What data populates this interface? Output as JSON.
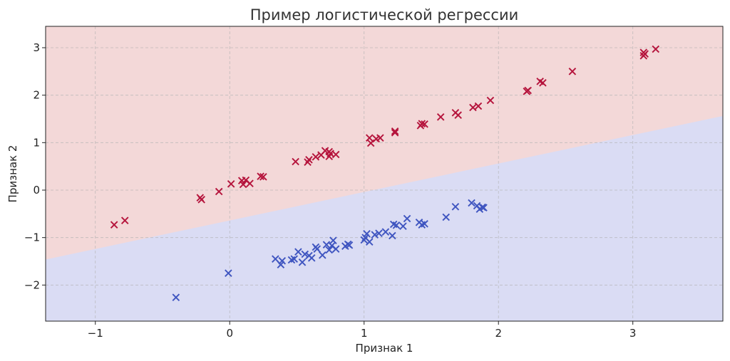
{
  "chart_data": {
    "type": "scatter",
    "title": "Пример логистической регрессии",
    "xlabel": "Признак 1",
    "ylabel": "Признак 2",
    "xlim": [
      -1.37,
      3.67
    ],
    "ylim": [
      -2.76,
      3.45
    ],
    "xticks": [
      -1,
      0,
      1,
      2,
      3
    ],
    "xtick_labels": [
      "−1",
      "0",
      "1",
      "2",
      "3"
    ],
    "yticks": [
      -2,
      -1,
      0,
      1,
      2,
      3
    ],
    "ytick_labels": [
      "−2",
      "−1",
      "0",
      "1",
      "2",
      "3"
    ],
    "grid": true,
    "marker": "x",
    "decision_boundary": {
      "slope": 0.6,
      "intercept": -0.64
    },
    "regions": [
      {
        "class": "upper",
        "color": "#f3d8d8"
      },
      {
        "class": "lower",
        "color": "#dadcf4"
      }
    ],
    "series": [
      {
        "color": "#b5143c",
        "points": [
          [
            -0.86,
            -0.73
          ],
          [
            -0.78,
            -0.64
          ],
          [
            -0.22,
            -0.16
          ],
          [
            -0.21,
            -0.2
          ],
          [
            -0.08,
            -0.03
          ],
          [
            0.01,
            0.13
          ],
          [
            0.09,
            0.2
          ],
          [
            0.1,
            0.12
          ],
          [
            0.12,
            0.21
          ],
          [
            0.15,
            0.14
          ],
          [
            0.23,
            0.29
          ],
          [
            0.25,
            0.28
          ],
          [
            0.49,
            0.6
          ],
          [
            0.58,
            0.59
          ],
          [
            0.59,
            0.64
          ],
          [
            0.64,
            0.7
          ],
          [
            0.68,
            0.74
          ],
          [
            0.71,
            0.83
          ],
          [
            0.74,
            0.81
          ],
          [
            0.74,
            0.71
          ],
          [
            0.75,
            0.77
          ],
          [
            0.79,
            0.75
          ],
          [
            1.04,
            1.1
          ],
          [
            1.05,
            0.99
          ],
          [
            1.09,
            1.08
          ],
          [
            1.12,
            1.1
          ],
          [
            1.23,
            1.21
          ],
          [
            1.23,
            1.24
          ],
          [
            1.42,
            1.36
          ],
          [
            1.43,
            1.4
          ],
          [
            1.45,
            1.39
          ],
          [
            1.57,
            1.54
          ],
          [
            1.68,
            1.63
          ],
          [
            1.7,
            1.58
          ],
          [
            1.81,
            1.74
          ],
          [
            1.85,
            1.77
          ],
          [
            1.94,
            1.89
          ],
          [
            2.21,
            2.08
          ],
          [
            2.22,
            2.1
          ],
          [
            2.31,
            2.29
          ],
          [
            2.33,
            2.26
          ],
          [
            2.55,
            2.5
          ],
          [
            3.08,
            2.83
          ],
          [
            3.08,
            2.9
          ],
          [
            3.09,
            2.87
          ],
          [
            3.17,
            2.97
          ]
        ]
      },
      {
        "color": "#3f55c0",
        "points": [
          [
            -0.4,
            -2.26
          ],
          [
            -0.01,
            -1.75
          ],
          [
            0.34,
            -1.45
          ],
          [
            0.38,
            -1.57
          ],
          [
            0.39,
            -1.49
          ],
          [
            0.46,
            -1.47
          ],
          [
            0.48,
            -1.45
          ],
          [
            0.51,
            -1.3
          ],
          [
            0.54,
            -1.52
          ],
          [
            0.56,
            -1.35
          ],
          [
            0.59,
            -1.38
          ],
          [
            0.61,
            -1.43
          ],
          [
            0.64,
            -1.2
          ],
          [
            0.65,
            -1.24
          ],
          [
            0.69,
            -1.37
          ],
          [
            0.72,
            -1.15
          ],
          [
            0.74,
            -1.26
          ],
          [
            0.76,
            -1.17
          ],
          [
            0.77,
            -1.06
          ],
          [
            0.79,
            -1.24
          ],
          [
            0.86,
            -1.18
          ],
          [
            0.88,
            -1.14
          ],
          [
            0.89,
            -1.16
          ],
          [
            1.0,
            -1.05
          ],
          [
            1.01,
            -1.0
          ],
          [
            1.02,
            -0.92
          ],
          [
            1.04,
            -1.09
          ],
          [
            1.08,
            -0.94
          ],
          [
            1.11,
            -0.91
          ],
          [
            1.16,
            -0.88
          ],
          [
            1.21,
            -0.96
          ],
          [
            1.22,
            -0.72
          ],
          [
            1.24,
            -0.74
          ],
          [
            1.29,
            -0.76
          ],
          [
            1.32,
            -0.6
          ],
          [
            1.41,
            -0.68
          ],
          [
            1.43,
            -0.73
          ],
          [
            1.45,
            -0.71
          ],
          [
            1.61,
            -0.57
          ],
          [
            1.68,
            -0.35
          ],
          [
            1.8,
            -0.27
          ],
          [
            1.84,
            -0.33
          ],
          [
            1.86,
            -0.4
          ],
          [
            1.88,
            -0.36
          ],
          [
            1.89,
            -0.37
          ]
        ]
      }
    ]
  }
}
